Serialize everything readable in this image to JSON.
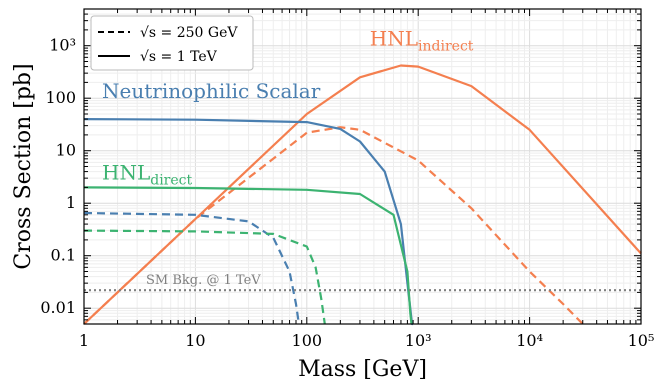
{
  "chart_data": {
    "type": "line",
    "title": "",
    "xlabel": "Mass [GeV]",
    "ylabel": "Cross Section [pb]",
    "xscale": "log",
    "yscale": "log",
    "xlim": [
      1,
      100000
    ],
    "ylim": [
      0.005,
      5000
    ],
    "grid": true,
    "legend": {
      "placement": "top-left",
      "entries": [
        {
          "style": "dashed",
          "label": "√s = 250 GeV"
        },
        {
          "style": "solid",
          "label": "√s = 1 TeV"
        }
      ]
    },
    "x_ticks": [
      "1",
      "10",
      "100",
      "10³",
      "10⁴",
      "10⁵"
    ],
    "y_ticks": [
      "0.01",
      "0.1",
      "1",
      "10",
      "100",
      "10³"
    ],
    "colors": {
      "hnl_indirect": "#F47F4F",
      "scalar": "#4A7FB0",
      "hnl_direct": "#3CB371",
      "background": "#808080"
    },
    "series": [
      {
        "name": "HNL_indirect",
        "label_main": "HNL",
        "label_sub": "indirect",
        "energy": "1 TeV",
        "style": "solid",
        "color": "#F47F4F",
        "x": [
          1,
          10,
          100,
          300,
          700,
          1000,
          3000,
          10000,
          100000
        ],
        "y": [
          0.005,
          0.5,
          50,
          250,
          420,
          400,
          170,
          25,
          0.11
        ]
      },
      {
        "name": "HNL_indirect",
        "energy": "250 GeV",
        "style": "dashed",
        "color": "#F47F4F",
        "x": [
          1,
          10,
          100,
          200,
          300,
          1000,
          3000,
          10000,
          20000,
          30000
        ],
        "y": [
          0.005,
          0.5,
          22,
          28,
          25,
          6.5,
          0.8,
          0.05,
          0.012,
          0.005
        ]
      },
      {
        "name": "Neutrinophilic Scalar",
        "energy": "1 TeV",
        "style": "solid",
        "color": "#4A7FB0",
        "x": [
          1,
          10,
          100,
          200,
          300,
          500,
          700,
          800,
          850,
          880,
          900
        ],
        "y": [
          40,
          39,
          35,
          26,
          15,
          4,
          0.4,
          0.03,
          0.01,
          0.005,
          0.005
        ]
      },
      {
        "name": "Neutrinophilic Scalar",
        "energy": "250 GeV",
        "style": "dashed",
        "color": "#4A7FB0",
        "x": [
          1,
          10,
          30,
          50,
          70,
          80,
          85
        ],
        "y": [
          0.65,
          0.6,
          0.45,
          0.22,
          0.05,
          0.012,
          0.005
        ]
      },
      {
        "name": "HNL_direct",
        "label_main": "HNL",
        "label_sub": "direct",
        "energy": "1 TeV",
        "style": "solid",
        "color": "#3CB371",
        "x": [
          1,
          10,
          100,
          300,
          600,
          800,
          850,
          870
        ],
        "y": [
          2,
          1.95,
          1.8,
          1.5,
          0.6,
          0.05,
          0.008,
          0.005
        ]
      },
      {
        "name": "HNL_direct",
        "energy": "250 GeV",
        "style": "dashed",
        "color": "#3CB371",
        "x": [
          1,
          10,
          50,
          100,
          120,
          135,
          145
        ],
        "y": [
          0.3,
          0.29,
          0.26,
          0.15,
          0.06,
          0.015,
          0.005
        ]
      },
      {
        "name": "SM Bkg. @ 1 TeV",
        "style": "dotted",
        "color": "#808080",
        "x": [
          1,
          100000
        ],
        "y": [
          0.022,
          0.022
        ]
      }
    ],
    "annotations": [
      {
        "id": "hnl_indirect",
        "main": "HNL",
        "sub": "indirect",
        "color": "#F47F4F"
      },
      {
        "id": "scalar",
        "main": "Neutrinophilic Scalar",
        "color": "#4A7FB0"
      },
      {
        "id": "hnl_direct",
        "main": "HNL",
        "sub": "direct",
        "color": "#3CB371"
      },
      {
        "id": "sm_bkg",
        "main": "SM Bkg. @ 1 TeV",
        "color": "#808080"
      }
    ]
  }
}
